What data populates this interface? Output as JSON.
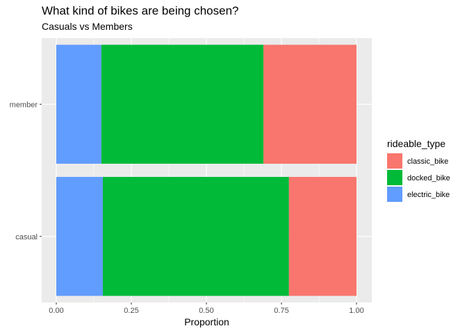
{
  "chart_data": {
    "type": "bar",
    "orientation": "horizontal",
    "stacked": true,
    "title": "What kind of bikes are being chosen?",
    "subtitle": "Casuals vs Members",
    "xlabel": "Proportion",
    "ylabel": "",
    "xlim": [
      0,
      1
    ],
    "x_ticks": [
      0.0,
      0.25,
      0.5,
      0.75,
      1.0
    ],
    "x_tick_labels": [
      "0.00",
      "0.25",
      "0.50",
      "0.75",
      "1.00"
    ],
    "categories": [
      "member",
      "casual"
    ],
    "series": [
      {
        "name": "electric_bike",
        "color": "#619CFF",
        "values": [
          0.15,
          0.155
        ]
      },
      {
        "name": "docked_bike",
        "color": "#00BA38",
        "values": [
          0.54,
          0.62
        ]
      },
      {
        "name": "classic_bike",
        "color": "#F8766D",
        "values": [
          0.31,
          0.225
        ]
      }
    ],
    "legend": {
      "title": "rideable_type",
      "placement": "right",
      "order": [
        "classic_bike",
        "docked_bike",
        "electric_bike"
      ]
    },
    "grid": true,
    "panel_background": "#EBEBEB",
    "grid_color": "#FFFFFF"
  }
}
